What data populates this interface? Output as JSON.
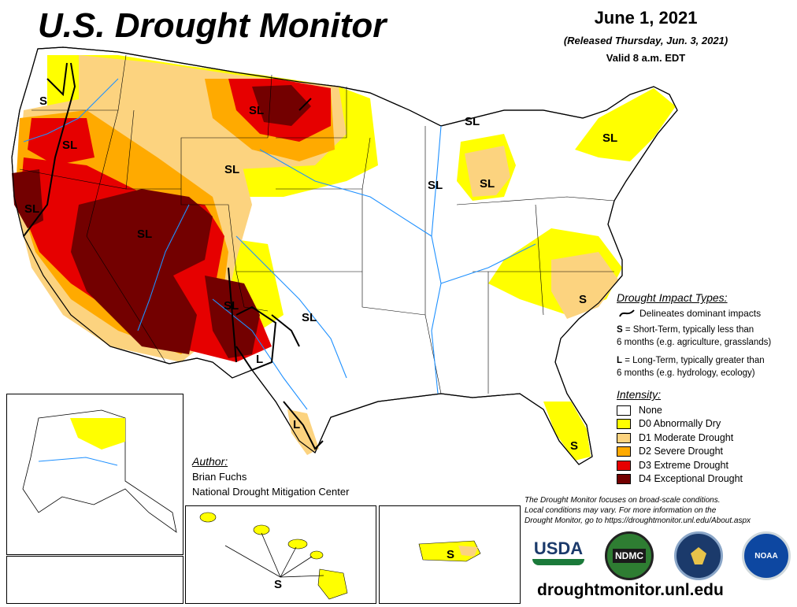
{
  "header": {
    "title": "U.S. Drought Monitor",
    "date": "June 1, 2021",
    "released": "(Released Thursday, Jun. 3, 2021)",
    "valid": "Valid 8 a.m. EDT"
  },
  "map_labels": [
    "S",
    "SL",
    "SL",
    "SL",
    "SL",
    "SL",
    "SL",
    "SL",
    "SL",
    "SL",
    "SL",
    "SL",
    "L",
    "L",
    "S",
    "S",
    "S",
    "S"
  ],
  "impact": {
    "title": "Drought Impact Types:",
    "delineates": "Delineates dominant impacts",
    "short_key": "S",
    "short_text": " = Short-Term, typically less than",
    "short_text2": "6 months (e.g. agriculture, grasslands)",
    "long_key": "L",
    "long_text": " = Long-Term, typically greater than",
    "long_text2": "6 months (e.g. hydrology, ecology)"
  },
  "intensity": {
    "title": "Intensity:",
    "items": [
      {
        "label": "None",
        "color": "#ffffff"
      },
      {
        "label": "D0 Abnormally Dry",
        "color": "#ffff00"
      },
      {
        "label": "D1 Moderate Drought",
        "color": "#fcd37f"
      },
      {
        "label": "D2 Severe Drought",
        "color": "#ffaa00"
      },
      {
        "label": "D3 Extreme Drought",
        "color": "#e60000"
      },
      {
        "label": "D4 Exceptional Drought",
        "color": "#730000"
      }
    ]
  },
  "author": {
    "title": "Author:",
    "name": "Brian Fuchs",
    "org": "National Drought Mitigation Center"
  },
  "note": {
    "line1": "The Drought Monitor focuses on broad-scale conditions.",
    "line2": "Local conditions may vary. For more information on the",
    "line3": "Drought Monitor, go to https://droughtmonitor.unl.edu/About.aspx"
  },
  "logos": {
    "usda": "USDA",
    "ndmc": "NDMC",
    "noaa": "NOAA"
  },
  "footer": {
    "url": "droughtmonitor.unl.edu"
  }
}
